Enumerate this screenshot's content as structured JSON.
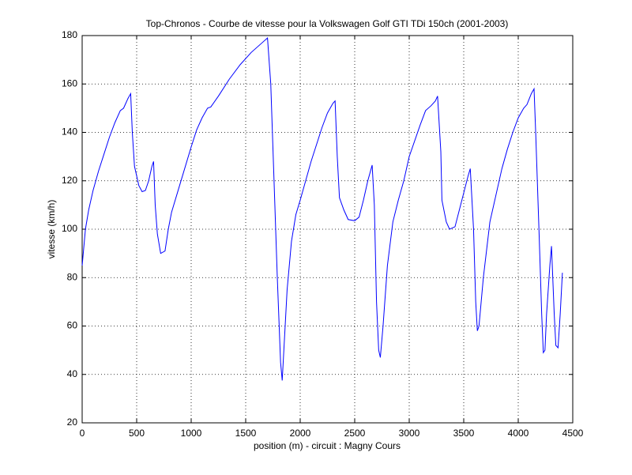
{
  "chart_data": {
    "type": "line",
    "title": "Top-Chronos - Courbe de vitesse pour la Volkswagen Golf GTI TDi 150ch (2001-2003)",
    "x_label": "position (m) - circuit : Magny Cours",
    "y_label": "vitesse (km/h)",
    "xlim": [
      0,
      4500
    ],
    "xticks": [
      0,
      500,
      1000,
      1500,
      2000,
      2500,
      3000,
      3500,
      4000,
      4500
    ],
    "ylim": [
      20,
      180
    ],
    "yticks": [
      20,
      40,
      60,
      80,
      100,
      120,
      140,
      160,
      180
    ],
    "grid": true,
    "x": [
      0,
      30,
      60,
      100,
      150,
      200,
      250,
      300,
      350,
      380,
      400,
      420,
      445,
      460,
      480,
      520,
      550,
      580,
      610,
      640,
      655,
      670,
      690,
      720,
      760,
      790,
      820,
      900,
      1000,
      1050,
      1100,
      1150,
      1180,
      1250,
      1350,
      1450,
      1550,
      1650,
      1700,
      1730,
      1760,
      1790,
      1820,
      1835,
      1850,
      1880,
      1920,
      1960,
      2000,
      2100,
      2200,
      2250,
      2300,
      2320,
      2340,
      2360,
      2400,
      2440,
      2500,
      2540,
      2580,
      2620,
      2660,
      2680,
      2700,
      2720,
      2735,
      2760,
      2800,
      2850,
      2900,
      2950,
      3000,
      3100,
      3150,
      3200,
      3240,
      3260,
      3290,
      3300,
      3340,
      3370,
      3420,
      3460,
      3500,
      3540,
      3560,
      3590,
      3610,
      3625,
      3640,
      3680,
      3740,
      3800,
      3850,
      3900,
      3950,
      4000,
      4050,
      4080,
      4120,
      4145,
      4160,
      4190,
      4215,
      4230,
      4245,
      4260,
      4290,
      4305,
      4330,
      4345,
      4365,
      4385,
      4405
    ],
    "series": [
      {
        "color": "#0000ff",
        "values": [
          85,
          100,
          108,
          116,
          124,
          131,
          138,
          144,
          149,
          150,
          152,
          154,
          156,
          140,
          126,
          118,
          115.5,
          116,
          120,
          126,
          128,
          110,
          98,
          90,
          91,
          100,
          107,
          119,
          134,
          141,
          146,
          150,
          150.5,
          155,
          162,
          168,
          173,
          177,
          179,
          160,
          120,
          80,
          45,
          37.5,
          50,
          75,
          95,
          106,
          112,
          128,
          142,
          148,
          152,
          153,
          130,
          113,
          108,
          104,
          103.5,
          105,
          112,
          120,
          126.5,
          110,
          70,
          50,
          47,
          60,
          85,
          103,
          112,
          120,
          130,
          143,
          149,
          151,
          153,
          155,
          132,
          112,
          103,
          100,
          101,
          108,
          115,
          122,
          125,
          100,
          70,
          58,
          60,
          80,
          103,
          115,
          125,
          133,
          140,
          146,
          150,
          151.5,
          156,
          158,
          140,
          100,
          65,
          49,
          50,
          65,
          85,
          93,
          65,
          52,
          51,
          65,
          82
        ]
      }
    ]
  }
}
